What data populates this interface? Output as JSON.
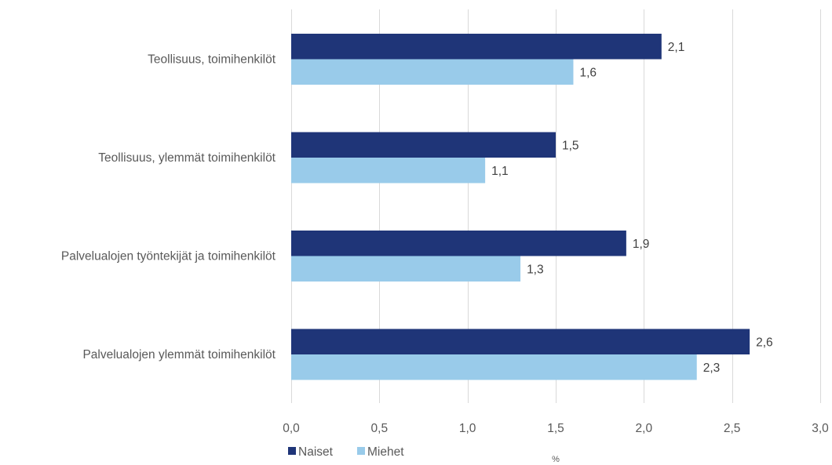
{
  "chart_data": {
    "type": "bar",
    "orientation": "horizontal",
    "categories": [
      "Teollisuus, toimihenkilöt",
      "Teollisuus, ylemmät toimihenkilöt",
      "Palvelualojen työntekijät ja toimihenkilöt",
      "Palvelualojen ylemmät toimihenkilöt"
    ],
    "series": [
      {
        "name": "Naiset",
        "values": [
          2.1,
          1.5,
          1.9,
          2.6
        ],
        "color": "#1f3578"
      },
      {
        "name": "Miehet",
        "values": [
          1.6,
          1.1,
          1.3,
          2.3
        ],
        "color": "#99cbea"
      }
    ],
    "xlim": [
      0,
      3.0
    ],
    "xticks": [
      0.0,
      0.5,
      1.0,
      1.5,
      2.0,
      2.5,
      3.0
    ],
    "xtick_labels": [
      "0,0",
      "0,5",
      "1,0",
      "1,5",
      "2,0",
      "2,5",
      "3,0"
    ],
    "xlabel": "%",
    "data_labels": [
      [
        "2,1",
        "1,6"
      ],
      [
        "1,5",
        "1,1"
      ],
      [
        "1,9",
        "1,3"
      ],
      [
        "2,6",
        "2,3"
      ]
    ],
    "grid": "vertical",
    "legend_position": "bottom-left"
  }
}
